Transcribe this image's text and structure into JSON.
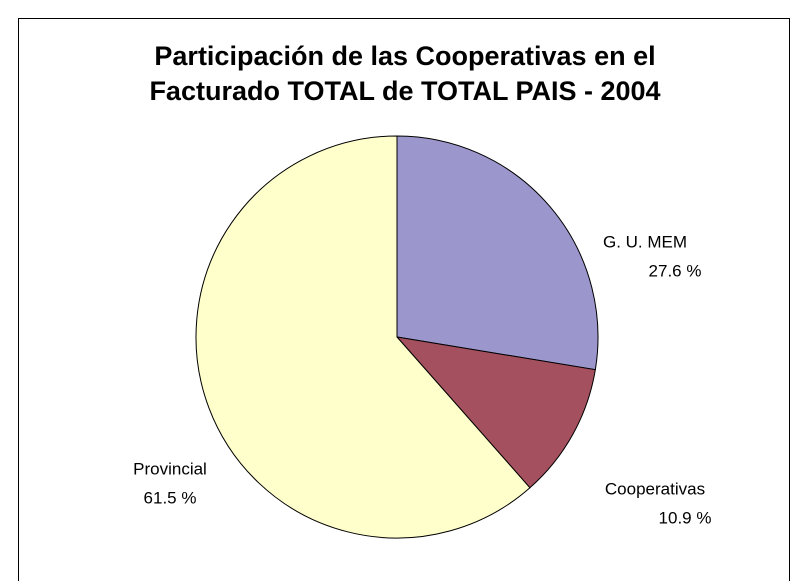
{
  "chart_data": {
    "type": "pie",
    "title": [
      "Participación de las Cooperativas en el",
      "Facturado TOTAL de TOTAL PAIS - 2004"
    ],
    "categories": [
      "G. U. MEM",
      "Cooperativas",
      "Provincial"
    ],
    "values": [
      27.6,
      10.9,
      61.5
    ],
    "value_labels": [
      "27.6 %",
      "10.9 %",
      "61.5 %"
    ],
    "colors": [
      "#9b96cc",
      "#a5505f",
      "#ffffcc"
    ]
  }
}
